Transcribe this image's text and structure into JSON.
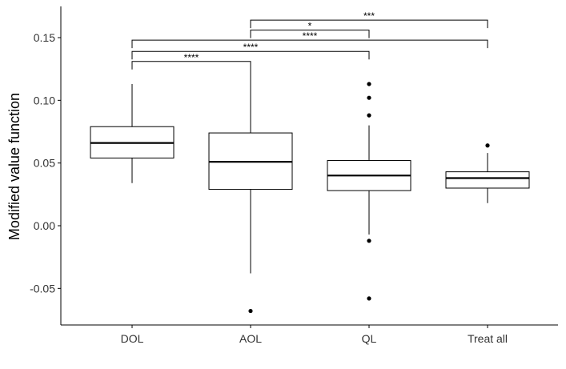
{
  "chart_data": {
    "type": "boxplot",
    "title": "",
    "xlabel": "",
    "ylabel": "Modified value function",
    "ylim": [
      -0.08,
      0.175
    ],
    "yticks": [
      -0.05,
      0.0,
      0.05,
      0.1,
      0.15
    ],
    "ytick_labels": [
      "-0.05",
      "0.00",
      "0.05",
      "0.10",
      "0.15"
    ],
    "grid": false,
    "categories": [
      "DOL",
      "AOL",
      "QL",
      "Treat all"
    ],
    "boxes": [
      {
        "category": "DOL",
        "whisker_low": 0.034,
        "q1": 0.054,
        "median": 0.066,
        "q3": 0.079,
        "whisker_high": 0.113,
        "outliers": []
      },
      {
        "category": "AOL",
        "whisker_low": -0.038,
        "q1": 0.029,
        "median": 0.051,
        "q3": 0.074,
        "whisker_high": 0.13,
        "outliers": [
          -0.068
        ]
      },
      {
        "category": "QL",
        "whisker_low": -0.007,
        "q1": 0.028,
        "median": 0.04,
        "q3": 0.052,
        "whisker_high": 0.08,
        "outliers": [
          0.113,
          0.102,
          0.088,
          -0.012,
          -0.058
        ]
      },
      {
        "category": "Treat all",
        "whisker_low": 0.018,
        "q1": 0.03,
        "median": 0.038,
        "q3": 0.043,
        "whisker_high": 0.058,
        "outliers": [
          0.064
        ]
      }
    ],
    "comparisons": [
      {
        "from": "AOL",
        "to": "Treat all",
        "label": "***",
        "y": 0.164
      },
      {
        "from": "AOL",
        "to": "QL",
        "label": "*",
        "y": 0.156
      },
      {
        "from": "DOL",
        "to": "Treat all",
        "label": "****",
        "y": 0.148
      },
      {
        "from": "DOL",
        "to": "QL",
        "label": "****",
        "y": 0.139
      },
      {
        "from": "DOL",
        "to": "AOL",
        "label": "****",
        "y": 0.131
      }
    ],
    "colors": {
      "box_fill": "#ffffff",
      "line": "#000000",
      "tick_text": "#333333"
    }
  }
}
